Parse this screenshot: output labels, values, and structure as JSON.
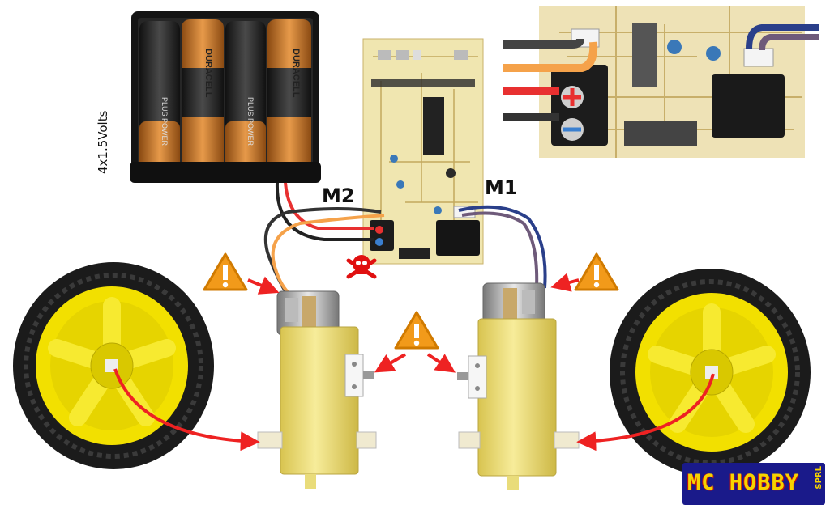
{
  "labels": {
    "battery": "4x1.5Volts",
    "motor_left": "M2",
    "motor_right": "M1"
  },
  "battery_pack": {
    "cells": 4,
    "cell_print": [
      "PLUS POWER",
      "DURACELL",
      "PLUS POWER",
      "DURACELL"
    ]
  },
  "logo": {
    "text": "MC HOBBY",
    "suffix": "SPRL"
  },
  "colors": {
    "wire_red": "#e83030",
    "wire_black": "#222222",
    "wire_orange": "#f5a24a",
    "wire_blue": "#2a3f8a",
    "arrow": "#ee2222",
    "warning": "#f29a1a",
    "gearbox": "#f3e27a",
    "wheel_hub": "#f2e000",
    "tire": "#1b1b1b",
    "pcb": "#f0e6b0"
  }
}
